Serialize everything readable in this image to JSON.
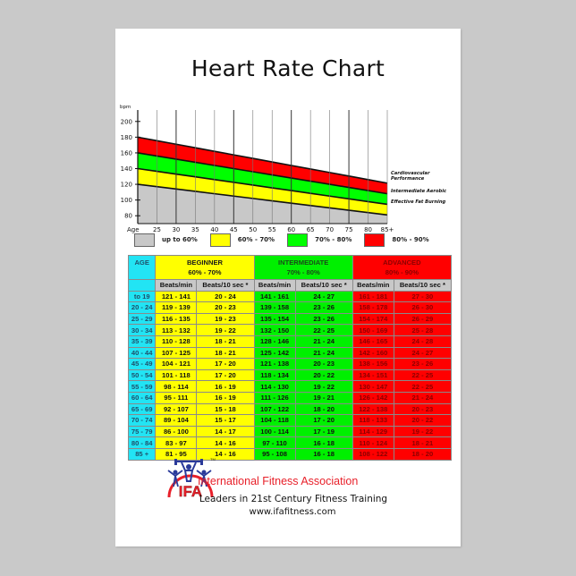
{
  "poster": {
    "title": "Heart Rate Chart"
  },
  "chart_data": [
    {
      "type": "area",
      "title": "Heart Rate Chart",
      "xlabel": "Age",
      "ylabel": "bpm",
      "x": [
        20,
        25,
        30,
        35,
        40,
        45,
        50,
        55,
        60,
        65,
        70,
        75,
        80,
        85
      ],
      "x_tick_labels": [
        "25",
        "30",
        "35",
        "40",
        "45",
        "50",
        "55",
        "60",
        "65",
        "70",
        "75",
        "80",
        "85+"
      ],
      "y_ticks": [
        80,
        100,
        120,
        140,
        160,
        180,
        200
      ],
      "ylim": [
        70,
        210
      ],
      "xlim": [
        20,
        85
      ],
      "grid": true,
      "series": [
        {
          "name": "up to 60%",
          "color": "#c8c8c8",
          "upper": [
            120,
            117,
            114,
            111,
            108,
            105,
            102,
            99,
            96,
            93,
            90,
            87,
            84,
            81
          ]
        },
        {
          "name": "60% - 70%",
          "color": "#ffff00",
          "upper": [
            140,
            136.5,
            133,
            129.5,
            126,
            122.5,
            119,
            115.5,
            112,
            108.5,
            105,
            101.5,
            98,
            94.5
          ]
        },
        {
          "name": "70% - 80%",
          "color": "#00ff00",
          "upper": [
            160,
            156,
            152,
            148,
            144,
            140,
            136,
            132,
            128,
            124,
            120,
            116,
            112,
            108
          ]
        },
        {
          "name": "80% - 90%",
          "color": "#ff0000",
          "upper": [
            180,
            175.5,
            171,
            166.5,
            162,
            157.5,
            153,
            148.5,
            144,
            139.5,
            135,
            130.5,
            126,
            121.5
          ]
        }
      ],
      "annotations": [
        "Cardiovascular Performance",
        "Intermediate Aerobic",
        "Effective Fat Burning"
      ],
      "legend": [
        {
          "label": "up to 60%",
          "color": "#c8c8c8"
        },
        {
          "label": "60% - 70%",
          "color": "#ffff00"
        },
        {
          "label": "70% - 80%",
          "color": "#00ff00"
        },
        {
          "label": "80% - 90%",
          "color": "#ff0000"
        }
      ],
      "legend_position": "bottom"
    },
    {
      "type": "table",
      "headers": {
        "age": "AGE",
        "groups": [
          {
            "name": "BEGINNER",
            "range": "60% - 70%",
            "color": "#ffff00"
          },
          {
            "name": "INTERMEDIATE",
            "range": "70% - 80%",
            "color": "#00f000"
          },
          {
            "name": "ADVANCED",
            "range": "80% - 90%",
            "color": "#ff0000"
          }
        ],
        "sub": [
          "Beats/min",
          "Beats/10 sec *"
        ]
      },
      "rows": [
        {
          "age": "to 19",
          "beg_min": "121 - 141",
          "beg_10": "20 - 24",
          "int_min": "141 - 161",
          "int_10": "24 - 27",
          "adv_min": "161 - 181",
          "adv_10": "27 - 30"
        },
        {
          "age": "20 - 24",
          "beg_min": "119 - 139",
          "beg_10": "20 - 23",
          "int_min": "139 - 158",
          "int_10": "23 - 26",
          "adv_min": "158 - 178",
          "adv_10": "26 - 30"
        },
        {
          "age": "25 - 29",
          "beg_min": "116 - 135",
          "beg_10": "19 - 23",
          "int_min": "135 - 154",
          "int_10": "23 - 26",
          "adv_min": "154 - 174",
          "adv_10": "26 - 29"
        },
        {
          "age": "30 - 34",
          "beg_min": "113 - 132",
          "beg_10": "19 - 22",
          "int_min": "132 - 150",
          "int_10": "22 - 25",
          "adv_min": "150 - 169",
          "adv_10": "25 - 28"
        },
        {
          "age": "35 - 39",
          "beg_min": "110 - 128",
          "beg_10": "18 - 21",
          "int_min": "128 - 146",
          "int_10": "21 - 24",
          "adv_min": "146 - 165",
          "adv_10": "24 - 28"
        },
        {
          "age": "40 - 44",
          "beg_min": "107 - 125",
          "beg_10": "18 - 21",
          "int_min": "125 - 142",
          "int_10": "21 - 24",
          "adv_min": "142 - 160",
          "adv_10": "24 - 27"
        },
        {
          "age": "45 - 49",
          "beg_min": "104 - 121",
          "beg_10": "17 - 20",
          "int_min": "121 - 138",
          "int_10": "20 - 23",
          "adv_min": "138 - 156",
          "adv_10": "23 - 26"
        },
        {
          "age": "50 - 54",
          "beg_min": "101 - 118",
          "beg_10": "17 - 20",
          "int_min": "118 - 134",
          "int_10": "20 - 22",
          "adv_min": "134 - 151",
          "adv_10": "22 - 25"
        },
        {
          "age": "55 - 59",
          "beg_min": "98 - 114",
          "beg_10": "16 - 19",
          "int_min": "114 - 130",
          "int_10": "19 - 22",
          "adv_min": "130 - 147",
          "adv_10": "22 - 25"
        },
        {
          "age": "60 - 64",
          "beg_min": "95 - 111",
          "beg_10": "16 - 19",
          "int_min": "111 - 126",
          "int_10": "19 - 21",
          "adv_min": "126 - 142",
          "adv_10": "21 - 24"
        },
        {
          "age": "65 - 69",
          "beg_min": "92 - 107",
          "beg_10": "15 - 18",
          "int_min": "107 - 122",
          "int_10": "18 - 20",
          "adv_min": "122 - 138",
          "adv_10": "20 - 23"
        },
        {
          "age": "70 - 74",
          "beg_min": "89 - 104",
          "beg_10": "15 - 17",
          "int_min": "104 - 118",
          "int_10": "17 - 20",
          "adv_min": "118 - 133",
          "adv_10": "20 - 22"
        },
        {
          "age": "75 - 79",
          "beg_min": "86 - 100",
          "beg_10": "14 - 17",
          "int_min": "100 - 114",
          "int_10": "17 - 19",
          "adv_min": "114 - 129",
          "adv_10": "19 - 22"
        },
        {
          "age": "80 - 84",
          "beg_min": "83 - 97",
          "beg_10": "14 - 16",
          "int_min": "97 - 110",
          "int_10": "16 - 18",
          "adv_min": "110 - 124",
          "adv_10": "18 - 21"
        },
        {
          "age": "85 +",
          "beg_min": "81 - 95",
          "beg_10": "14 - 16",
          "int_min": "95 - 108",
          "int_10": "16 - 18",
          "adv_min": "108 - 122",
          "adv_10": "18 - 20"
        }
      ]
    }
  ],
  "footer": {
    "logo_text": "IFA",
    "trademark": "TM",
    "org_name": "International Fitness Association",
    "tagline": "Leaders in 21st Century Fitness Training",
    "website": "www.ifafitness.com"
  },
  "colors": {
    "background": "#c9c9c9",
    "poster": "#ffffff",
    "age_cell": "#22e4f4",
    "beginner": "#ffff00",
    "intermediate": "#00f000",
    "advanced": "#ff0000",
    "subheader": "#c8c8c8",
    "brand_red": "#e8202a"
  }
}
